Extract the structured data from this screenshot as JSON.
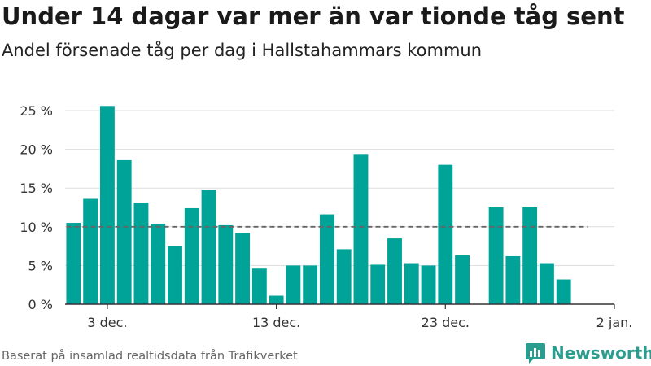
{
  "header": {
    "title": "Under 14 dagar var mer än var tionde tåg sent",
    "subtitle": "Andel försenade tåg per dag i Hallstahammars kommun"
  },
  "footer": {
    "source": "Baserat på insamlad realtidsdata från Trafikverket",
    "brand": "Newsworthy"
  },
  "colors": {
    "bar": "#00a398",
    "reference_line": "#666666",
    "grid": "#dddddd",
    "brand": "#2a9d8f"
  },
  "chart_data": {
    "type": "bar",
    "x_start_day": 1,
    "x": [
      "1 dec.",
      "2 dec.",
      "3 dec.",
      "4 dec.",
      "5 dec.",
      "6 dec.",
      "7 dec.",
      "8 dec.",
      "9 dec.",
      "10 dec.",
      "11 dec.",
      "12 dec.",
      "13 dec.",
      "14 dec.",
      "15 dec.",
      "16 dec.",
      "17 dec.",
      "18 dec.",
      "19 dec.",
      "20 dec.",
      "21 dec.",
      "22 dec.",
      "23 dec.",
      "24 dec.",
      "25 dec.",
      "26 dec.",
      "27 dec.",
      "28 dec.",
      "29 dec.",
      "30 dec."
    ],
    "values": [
      10.5,
      13.6,
      25.6,
      18.6,
      13.1,
      10.4,
      7.5,
      12.4,
      14.8,
      10.2,
      9.2,
      4.6,
      1.1,
      5.0,
      5.0,
      11.6,
      7.1,
      19.4,
      5.1,
      8.5,
      5.3,
      5.0,
      18.0,
      6.3,
      null,
      12.5,
      6.2,
      12.5,
      5.3,
      3.2
    ],
    "reference_line": 10,
    "ylim": [
      0,
      27
    ],
    "yticks": [
      0,
      5,
      10,
      15,
      20,
      25
    ],
    "ytick_labels": [
      "0 %",
      "5 %",
      "10 %",
      "15 %",
      "20 %",
      "25 %"
    ],
    "xticks": [
      {
        "day": 3,
        "label": "3 dec."
      },
      {
        "day": 13,
        "label": "13 dec."
      },
      {
        "day": 23,
        "label": "23 dec."
      },
      {
        "day": 33,
        "label": "2 jan."
      }
    ],
    "xlim_days": [
      0.5,
      33
    ]
  }
}
